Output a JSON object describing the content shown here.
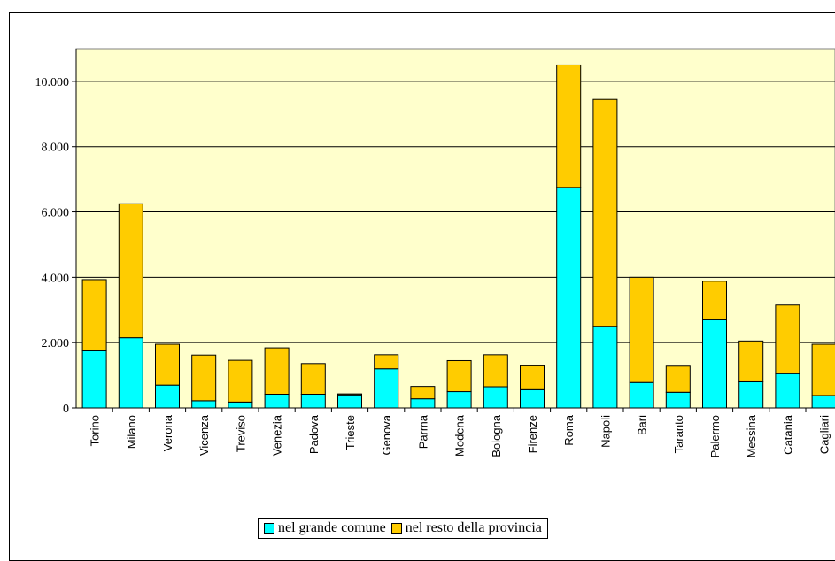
{
  "chart_data": {
    "type": "bar",
    "stacked": true,
    "title": "",
    "xlabel": "",
    "ylabel": "",
    "ylim": [
      0,
      11000
    ],
    "yticks": [
      0,
      2000,
      4000,
      6000,
      8000,
      10000
    ],
    "ytick_labels": [
      "0",
      "2.000",
      "4.000",
      "6.000",
      "8.000",
      "10.000"
    ],
    "grid": true,
    "plot_background": "#ffffcc",
    "legend_position": "bottom-center",
    "categories": [
      "Torino",
      "Milano",
      "Verona",
      "Vicenza",
      "Treviso",
      "Venezia",
      "Padova",
      "Trieste",
      "Genova",
      "Parma",
      "Modena",
      "Bologna",
      "Firenze",
      "Roma",
      "Napoli",
      "Bari",
      "Taranto",
      "Palermo",
      "Messina",
      "Catania",
      "Cagliari"
    ],
    "series": [
      {
        "name": "nel grande comune",
        "color": "#00ffff",
        "values": [
          1750,
          2150,
          700,
          220,
          180,
          420,
          420,
          400,
          1200,
          280,
          500,
          650,
          560,
          6750,
          2500,
          780,
          480,
          2700,
          800,
          1050,
          380
        ]
      },
      {
        "name": "nel resto della provincia",
        "color": "#ffcc00",
        "values": [
          2180,
          4100,
          1250,
          1400,
          1280,
          1420,
          940,
          30,
          430,
          380,
          950,
          980,
          730,
          3750,
          6950,
          3220,
          800,
          1180,
          1250,
          2100,
          1570
        ]
      }
    ]
  }
}
